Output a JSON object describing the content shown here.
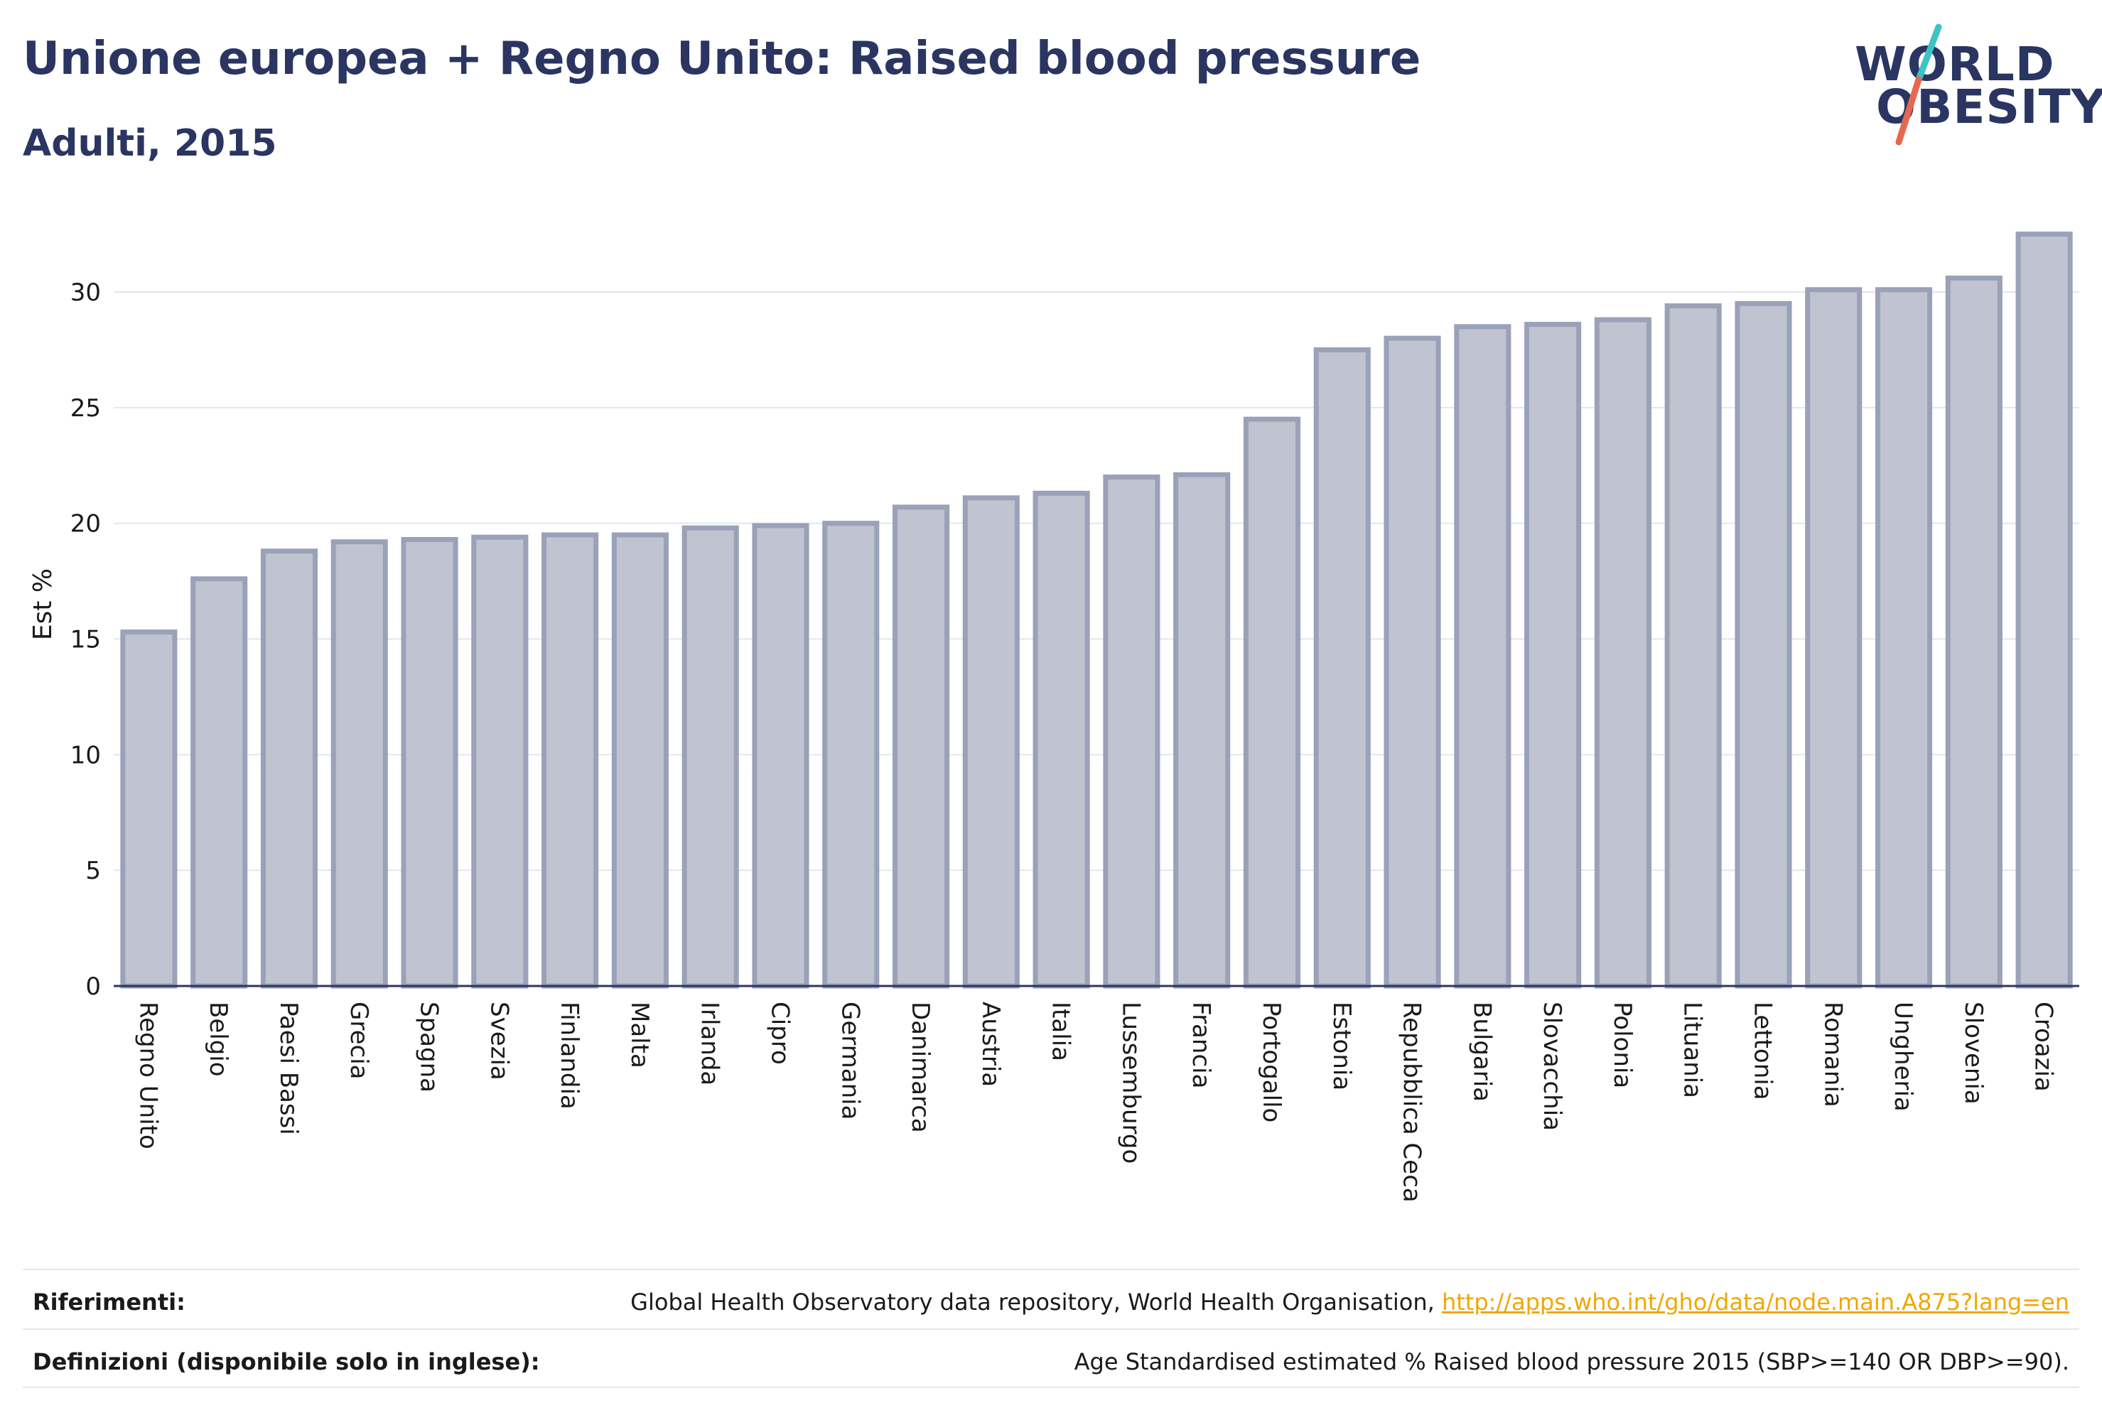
{
  "header": {
    "title": "Unione europea + Regno Unito: Raised blood pressure",
    "subtitle": "Adulti, 2015"
  },
  "logo": {
    "line1": "WORLD",
    "line2": "OBESITY",
    "colors": {
      "text": "#2a3562",
      "slash_top": "#3cc4c4",
      "slash_bottom": "#e8674f"
    }
  },
  "colors": {
    "bar_fill": "#c0c3d0",
    "bar_stroke": "#9aa1b8",
    "grid": "#e4e6ee",
    "axis": "#2a3562",
    "text": "#1a1a1a"
  },
  "chart_data": {
    "type": "bar",
    "categories": [
      "Regno Unito",
      "Belgio",
      "Paesi Bassi",
      "Grecia",
      "Spagna",
      "Svezia",
      "Finlandia",
      "Malta",
      "Irlanda",
      "Cipro",
      "Germania",
      "Danimarca",
      "Austria",
      "Italia",
      "Lussemburgo",
      "Francia",
      "Portogallo",
      "Estonia",
      "Repubblica Ceca",
      "Bulgaria",
      "Slovacchia",
      "Polonia",
      "Lituania",
      "Lettonia",
      "Romania",
      "Ungheria",
      "Slovenia",
      "Croazia"
    ],
    "values": [
      15.3,
      17.6,
      18.8,
      19.2,
      19.3,
      19.4,
      19.5,
      19.5,
      19.8,
      19.9,
      20.0,
      20.7,
      21.1,
      21.3,
      22.0,
      22.1,
      24.5,
      27.5,
      28.0,
      28.5,
      28.6,
      28.8,
      29.4,
      29.5,
      30.1,
      30.1,
      30.6,
      32.5
    ],
    "ylabel": "Est %",
    "ylim": [
      0,
      33
    ],
    "yticks": [
      0,
      5,
      10,
      15,
      20,
      25,
      30
    ],
    "grid": true
  },
  "footer": {
    "references_label": "Riferimenti:",
    "references_text": "Global Health Observatory data repository, World Health Organisation, ",
    "references_link": "http://apps.who.int/gho/data/node.main.A875?lang=en",
    "definitions_label": "Definizioni (disponibile solo in inglese):",
    "definitions_text": "Age Standardised estimated % Raised blood pressure 2015 (SBP>=140 OR DBP>=90)."
  }
}
